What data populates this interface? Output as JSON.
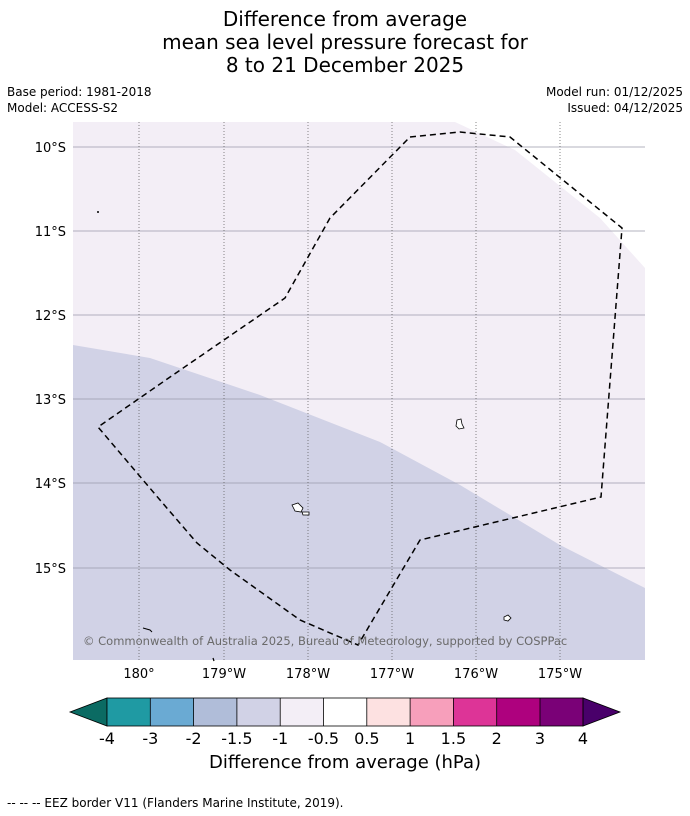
{
  "title": {
    "line1": "Difference from average",
    "line2": "mean sea level pressure forecast for",
    "line3": "8 to 21 December 2025"
  },
  "meta": {
    "base_period": "Base period: 1981-2018",
    "model": "Model: ACCESS-S2",
    "model_run": "Model run: 01/12/2025",
    "issued": "Issued: 04/12/2025"
  },
  "map": {
    "lat_labels": [
      "10°S",
      "11°S",
      "12°S",
      "13°S",
      "14°S",
      "15°S"
    ],
    "lon_labels": [
      "180°",
      "179°W",
      "178°W",
      "177°W",
      "176°W",
      "175°W"
    ],
    "copyright": "© Commonwealth of Australia 2025, Bureau of Meteorology, supported by COSPPac",
    "colors": {
      "upper_region": "#f3eef6",
      "lower_region": "#d1d2e6",
      "grid": "#9a9aaa",
      "eez_border": "#000000"
    }
  },
  "colorbar": {
    "label": "Difference from average (hPa)",
    "ticks": [
      "-4",
      "-3",
      "-2",
      "-1.5",
      "-1",
      "-0.5",
      "0.5",
      "1",
      "1.5",
      "2",
      "3",
      "4"
    ],
    "colors": [
      "#0b6b63",
      "#1f9aa3",
      "#6aaad3",
      "#b0bdd9",
      "#d1d2e6",
      "#f3eef6",
      "#ffffff",
      "#fde1e1",
      "#f79fbb",
      "#dd3497",
      "#ae017e",
      "#7a0177",
      "#49006a"
    ]
  },
  "footer": "--  --  -- EEZ border V11 (Flanders Marine Institute, 2019)."
}
